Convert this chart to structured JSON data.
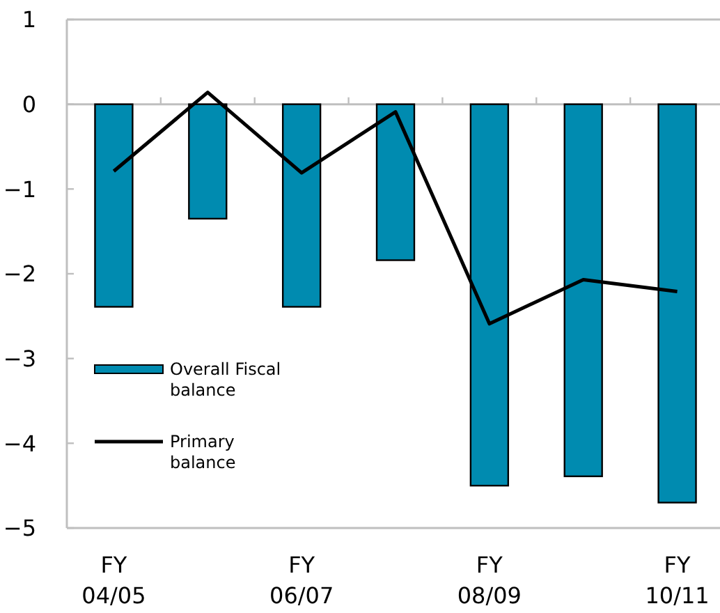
{
  "chart_data": {
    "type": "bar",
    "categories": [
      "FY 04/05",
      null,
      "FY 06/07",
      null,
      "FY 08/09",
      null,
      "FY 10/11"
    ],
    "series": [
      {
        "name": "Overall Fiscal balance",
        "color": "#008bb0",
        "values": [
          -2.39,
          -1.35,
          -2.39,
          -1.84,
          -4.5,
          -4.39,
          -4.7
        ]
      },
      {
        "name": "Primary balance",
        "type": "line",
        "color": "#000000",
        "values": [
          -0.79,
          0.14,
          -0.81,
          -0.09,
          -2.59,
          -2.07,
          -2.21
        ]
      }
    ],
    "ylim": [
      -5,
      1
    ],
    "yticks": [
      -5,
      -4,
      -3,
      -2,
      -1,
      0,
      1
    ],
    "legend": "left",
    "marker": "none",
    "line_style": "solid"
  }
}
